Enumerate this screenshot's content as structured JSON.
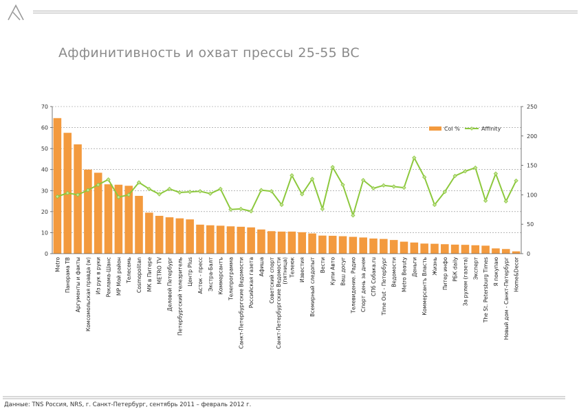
{
  "slide": {
    "title": "Аффинитивность и охват прессы 25-55 BC",
    "source": "Данные: TNS Россия,  NRS, г. Санкт-Петербург, сентябрь 2011 – февраль 2012 г."
  },
  "colors": {
    "bar": "#F39A3E",
    "line": "#8CC83C",
    "marker": "#C5E39A",
    "title": "#8A8A8A",
    "rule": "#B0B0B0"
  },
  "icons": {
    "logo": "lambda-logo-icon"
  },
  "chart_data": {
    "type": "bar",
    "title": "",
    "legend_position": "top-right",
    "xlabel": "",
    "ylabel": "",
    "categories": [
      "Metro",
      "Панорама ТВ",
      "Аргументы и факты",
      "Комсомольская правда (w)",
      "Из рук в руки",
      "Реклама-Шанс",
      "МР Мой район",
      "Телесемь",
      "Cosmopolitan",
      "МК в Питере",
      "METRO TV",
      "Деловой Петербург",
      "Петербургский телезритель",
      "Центр Plus",
      "Асток - пресс",
      "Экстра-Балт",
      "Коммерсантъ",
      "Телепрограмма",
      "Санкт-Петербургские Ведомости",
      "Российская газета",
      "Афиша",
      "Советский спорт",
      "Санкт-Петербургские Ведомости (пятница)",
      "Телеюк",
      "Известия",
      "Всемирный следопыт",
      "Вести",
      "Купи Авто",
      "Ваш досуг",
      "Телевидение. Радио",
      "Спорт день за днем",
      "СПб Собака.ru",
      "Time Out - Петербург",
      "Ведомости",
      "Metro Beauty",
      "Деньги",
      "Коммерсантъ Власть",
      "Жизнь",
      "Питер инфо",
      "РБК daily",
      "За рулем (газета)",
      "Эксперт",
      "The St. Petersburg Times",
      "Я покупаю",
      "Новый дом - Санкт-Петербург",
      "Home&Decor"
    ],
    "series": [
      {
        "name": "Col %",
        "type": "bar",
        "axis": "left",
        "values": [
          64.5,
          57.5,
          52,
          40,
          38.5,
          33,
          32.8,
          32.3,
          27.5,
          19.5,
          18,
          17.3,
          16.8,
          16.3,
          13.8,
          13.5,
          13.3,
          13,
          12.8,
          12.5,
          11.5,
          10.7,
          10.5,
          10.5,
          10.2,
          9.6,
          8.6,
          8.5,
          8.3,
          8,
          7.7,
          7.2,
          7,
          6.5,
          5.7,
          5.3,
          4.8,
          4.7,
          4.5,
          4.3,
          4.2,
          4,
          3.8,
          2.5,
          2.2,
          1.1
        ]
      },
      {
        "name": "Affinity",
        "type": "line",
        "axis": "right",
        "values": [
          97,
          103,
          100,
          108,
          117,
          126,
          96,
          100,
          121,
          110,
          101,
          110,
          104,
          105,
          106,
          102,
          110,
          75,
          76,
          72,
          108,
          106,
          83,
          133,
          101,
          127,
          76,
          147,
          117,
          65,
          125,
          111,
          116,
          114,
          112,
          163,
          130,
          83,
          105,
          132,
          140,
          146,
          90,
          136,
          89,
          124
        ]
      }
    ],
    "y_left": {
      "min": 0,
      "max": 70,
      "ticks": [
        0,
        10,
        20,
        30,
        40,
        50,
        60,
        70
      ]
    },
    "y_right": {
      "min": 0,
      "max": 250,
      "ticks": [
        0,
        50,
        100,
        150,
        200,
        250
      ]
    },
    "grid": true
  }
}
